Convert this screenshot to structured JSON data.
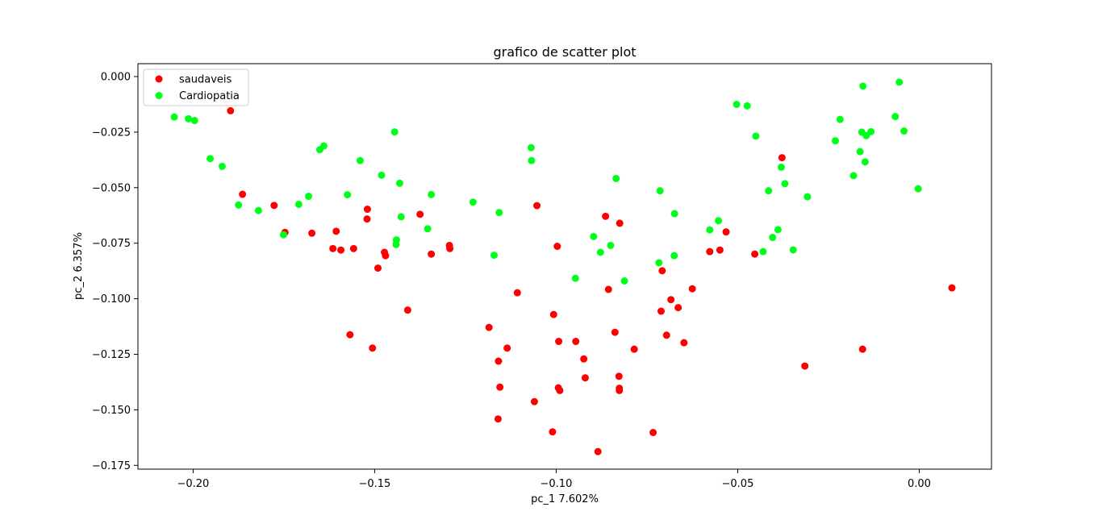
{
  "chart_data": {
    "type": "scatter",
    "title": "grafico de scatter plot",
    "xlabel": "pc_1  7.602%",
    "ylabel": "pc_2  6.357%",
    "xlim": [
      -0.2152,
      0.0199
    ],
    "ylim": [
      -0.1767,
      0.0058
    ],
    "x_ticks": [
      -0.2,
      -0.15,
      -0.1,
      -0.05,
      0.0
    ],
    "x_tick_labels": [
      "−0.20",
      "−0.15",
      "−0.10",
      "−0.05",
      "0.00"
    ],
    "y_ticks": [
      0.0,
      -0.025,
      -0.05,
      -0.075,
      -0.1,
      -0.125,
      -0.15,
      -0.175
    ],
    "y_tick_labels": [
      "0.000",
      "−0.025",
      "−0.050",
      "−0.075",
      "−0.100",
      "−0.125",
      "−0.150",
      "−0.175"
    ],
    "grid": false,
    "legend_position": "top-left",
    "series": [
      {
        "name": "saudaveis",
        "color": "#ff0000",
        "points": [
          [
            -0.1897,
            -0.0154
          ],
          [
            -0.1864,
            -0.053
          ],
          [
            -0.1777,
            -0.058
          ],
          [
            -0.1747,
            -0.0701
          ],
          [
            -0.1673,
            -0.0705
          ],
          [
            -0.1615,
            -0.0774
          ],
          [
            -0.1606,
            -0.0696
          ],
          [
            -0.1593,
            -0.0781
          ],
          [
            -0.1558,
            -0.0774
          ],
          [
            -0.1568,
            -0.1162
          ],
          [
            -0.152,
            -0.0597
          ],
          [
            -0.1521,
            -0.0641
          ],
          [
            -0.1491,
            -0.0862
          ],
          [
            -0.1473,
            -0.0791
          ],
          [
            -0.147,
            -0.0806
          ],
          [
            -0.1506,
            -0.1222
          ],
          [
            -0.1409,
            -0.1051
          ],
          [
            -0.1375,
            -0.062
          ],
          [
            -0.1344,
            -0.0799
          ],
          [
            -0.1294,
            -0.076
          ],
          [
            -0.1293,
            -0.0774
          ],
          [
            -0.1185,
            -0.1129
          ],
          [
            -0.1159,
            -0.1281
          ],
          [
            -0.1155,
            -0.1398
          ],
          [
            -0.116,
            -0.1541
          ],
          [
            -0.1135,
            -0.1222
          ],
          [
            -0.1107,
            -0.0973
          ],
          [
            -0.1053,
            -0.0581
          ],
          [
            -0.106,
            -0.1463
          ],
          [
            -0.1007,
            -0.1071
          ],
          [
            -0.101,
            -0.1599
          ],
          [
            -0.0997,
            -0.0764
          ],
          [
            -0.0993,
            -0.1192
          ],
          [
            -0.0994,
            -0.1401
          ],
          [
            -0.099,
            -0.1413
          ],
          [
            -0.0946,
            -0.1192
          ],
          [
            -0.0924,
            -0.1271
          ],
          [
            -0.092,
            -0.1356
          ],
          [
            -0.0885,
            -0.1688
          ],
          [
            -0.0864,
            -0.0629
          ],
          [
            -0.0856,
            -0.0958
          ],
          [
            -0.0838,
            -0.1151
          ],
          [
            -0.0825,
            -0.066
          ],
          [
            -0.0827,
            -0.1349
          ],
          [
            -0.0826,
            -0.1403
          ],
          [
            -0.0826,
            -0.1413
          ],
          [
            -0.0785,
            -0.1227
          ],
          [
            -0.0733,
            -0.1602
          ],
          [
            -0.0708,
            -0.0874
          ],
          [
            -0.0711,
            -0.1056
          ],
          [
            -0.0696,
            -0.1164
          ],
          [
            -0.0684,
            -0.1004
          ],
          [
            -0.0664,
            -0.104
          ],
          [
            -0.0648,
            -0.1198
          ],
          [
            -0.0625,
            -0.0955
          ],
          [
            -0.0577,
            -0.0788
          ],
          [
            -0.0549,
            -0.0781
          ],
          [
            -0.0532,
            -0.0699
          ],
          [
            -0.0453,
            -0.0799
          ],
          [
            -0.0378,
            -0.0365
          ],
          [
            -0.0315,
            -0.1303
          ],
          [
            -0.0156,
            -0.1227
          ],
          [
            0.009,
            -0.0951
          ]
        ]
      },
      {
        "name": "Cardiopatia",
        "color": "#00ff1a",
        "points": [
          [
            -0.2052,
            -0.0182
          ],
          [
            -0.2013,
            -0.019
          ],
          [
            -0.1996,
            -0.0198
          ],
          [
            -0.1953,
            -0.0369
          ],
          [
            -0.192,
            -0.0404
          ],
          [
            -0.1875,
            -0.0578
          ],
          [
            -0.182,
            -0.0603
          ],
          [
            -0.1751,
            -0.0712
          ],
          [
            -0.1709,
            -0.0575
          ],
          [
            -0.1682,
            -0.0539
          ],
          [
            -0.1651,
            -0.0329
          ],
          [
            -0.164,
            -0.0312
          ],
          [
            -0.1575,
            -0.0532
          ],
          [
            -0.154,
            -0.0378
          ],
          [
            -0.1481,
            -0.0444
          ],
          [
            -0.1445,
            -0.0249
          ],
          [
            -0.1441,
            -0.0756
          ],
          [
            -0.144,
            -0.0735
          ],
          [
            -0.1431,
            -0.048
          ],
          [
            -0.1427,
            -0.0631
          ],
          [
            -0.1354,
            -0.0685
          ],
          [
            -0.1344,
            -0.0531
          ],
          [
            -0.1229,
            -0.0565
          ],
          [
            -0.1171,
            -0.0804
          ],
          [
            -0.1157,
            -0.0612
          ],
          [
            -0.1069,
            -0.032
          ],
          [
            -0.1068,
            -0.0378
          ],
          [
            -0.0947,
            -0.0908
          ],
          [
            -0.0897,
            -0.072
          ],
          [
            -0.0878,
            -0.0791
          ],
          [
            -0.085,
            -0.076
          ],
          [
            -0.0835,
            -0.0459
          ],
          [
            -0.0812,
            -0.092
          ],
          [
            -0.0717,
            -0.0838
          ],
          [
            -0.0714,
            -0.0514
          ],
          [
            -0.0675,
            -0.0806
          ],
          [
            -0.0674,
            -0.0617
          ],
          [
            -0.0577,
            -0.069
          ],
          [
            -0.0553,
            -0.0649
          ],
          [
            -0.0503,
            -0.0125
          ],
          [
            -0.0474,
            -0.0132
          ],
          [
            -0.045,
            -0.0268
          ],
          [
            -0.043,
            -0.0788
          ],
          [
            -0.0415,
            -0.0514
          ],
          [
            -0.0404,
            -0.0724
          ],
          [
            -0.0389,
            -0.0689
          ],
          [
            -0.038,
            -0.0408
          ],
          [
            -0.037,
            -0.0482
          ],
          [
            -0.0347,
            -0.078
          ],
          [
            -0.0308,
            -0.0541
          ],
          [
            -0.0231,
            -0.0289
          ],
          [
            -0.0218,
            -0.0193
          ],
          [
            -0.0181,
            -0.0446
          ],
          [
            -0.0163,
            -0.0338
          ],
          [
            -0.0158,
            -0.025
          ],
          [
            -0.0155,
            -0.0043
          ],
          [
            -0.0149,
            -0.0384
          ],
          [
            -0.0146,
            -0.0266
          ],
          [
            -0.0133,
            -0.0248
          ],
          [
            -0.0066,
            -0.018
          ],
          [
            -0.0055,
            -0.0025
          ],
          [
            -0.0042,
            -0.0245
          ],
          [
            -0.0003,
            -0.0505
          ]
        ]
      }
    ]
  }
}
